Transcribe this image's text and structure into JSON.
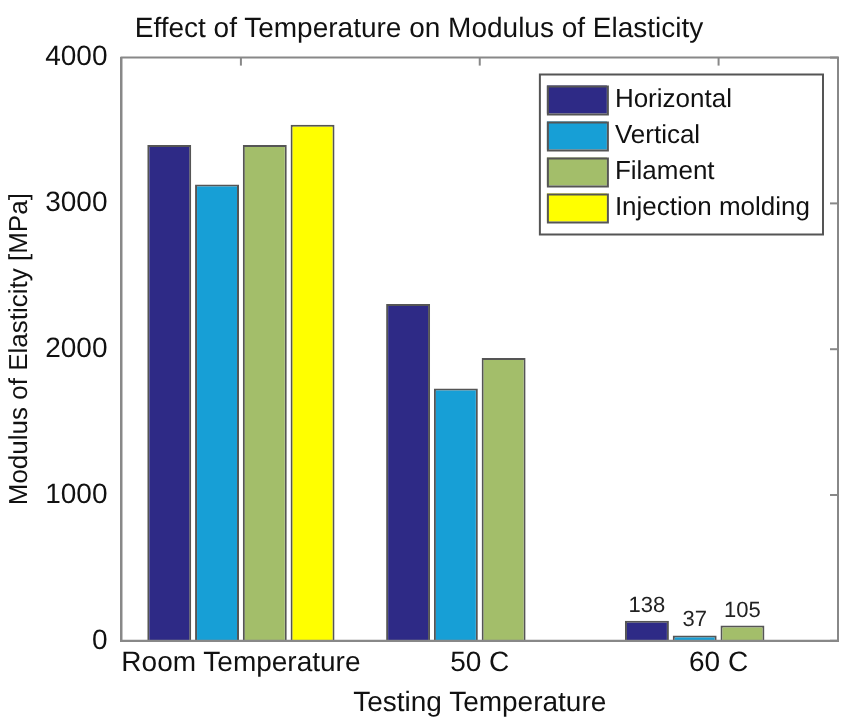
{
  "chart_data": {
    "type": "bar",
    "title": "Effect of Temperature on Modulus of Elasticity",
    "xlabel": "Testing Temperature",
    "ylabel": "Modulus of Elasticity [MPa]",
    "categories": [
      "Room Temperature",
      "50 C",
      "60 C"
    ],
    "series": [
      {
        "name": "Horizontal",
        "color": "#2e2a86",
        "values": [
          3400,
          2310,
          138
        ],
        "value_labels": [
          null,
          null,
          "138"
        ]
      },
      {
        "name": "Vertical",
        "color": "#179fd6",
        "values": [
          3130,
          1730,
          37
        ],
        "value_labels": [
          null,
          null,
          "37"
        ]
      },
      {
        "name": "Filament",
        "color": "#a3be6a",
        "values": [
          3400,
          1940,
          105
        ],
        "value_labels": [
          null,
          null,
          "105"
        ]
      },
      {
        "name": "Injection molding",
        "color": "#ffff00",
        "values": [
          3540,
          null,
          null
        ]
      }
    ],
    "ylim": [
      0,
      4000
    ],
    "yticks": [
      0,
      1000,
      2000,
      3000,
      4000
    ],
    "grid": false,
    "legend": "top right"
  }
}
